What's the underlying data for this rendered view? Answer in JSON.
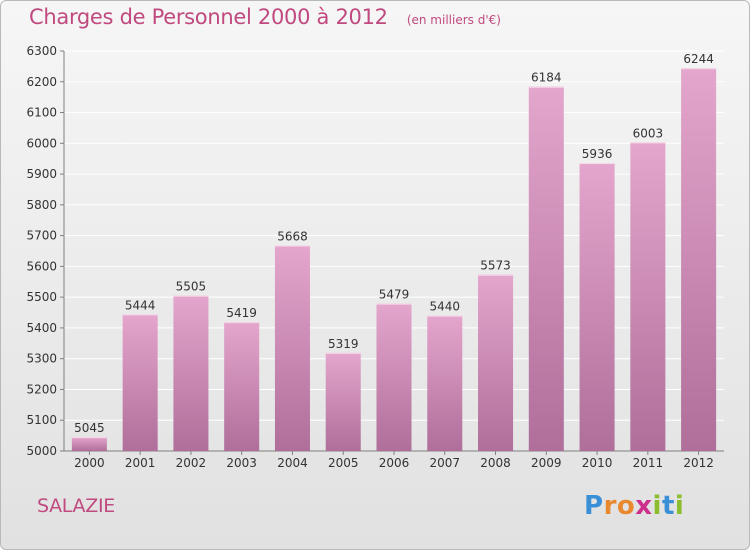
{
  "header": {
    "title": "Charges de Personnel 2000 à 2012",
    "subtitle": "(en milliers d'€)"
  },
  "footer": {
    "commune": "SALAZIE",
    "logo_letters": [
      "P",
      "r",
      "o",
      "x",
      "i",
      "t",
      "i"
    ],
    "logo_colors": [
      "#3a8fd6",
      "#e8892f",
      "#e8892f",
      "#cc2f8c",
      "#8cbd2f",
      "#3a8fd6",
      "#8cbd2f"
    ]
  },
  "colors": {
    "bar_top": "#e4a6cd",
    "bar_bottom": "#b06e9a",
    "label": "#333333",
    "grid": "#ffffff",
    "axis": "#808080"
  },
  "chart_data": {
    "type": "bar",
    "title": "Charges de Personnel 2000 à 2012",
    "subtitle": "(en milliers d'€)",
    "categories": [
      "2000",
      "2001",
      "2002",
      "2003",
      "2004",
      "2005",
      "2006",
      "2007",
      "2008",
      "2009",
      "2010",
      "2011",
      "2012"
    ],
    "values": [
      5045,
      5444,
      5505,
      5419,
      5668,
      5319,
      5479,
      5440,
      5573,
      6184,
      5936,
      6003,
      6244
    ],
    "ylim": [
      5000,
      6300
    ],
    "yticks": [
      5000,
      5100,
      5200,
      5300,
      5400,
      5500,
      5600,
      5700,
      5800,
      5900,
      6000,
      6100,
      6200,
      6300
    ],
    "grid": true,
    "data_labels": true
  }
}
